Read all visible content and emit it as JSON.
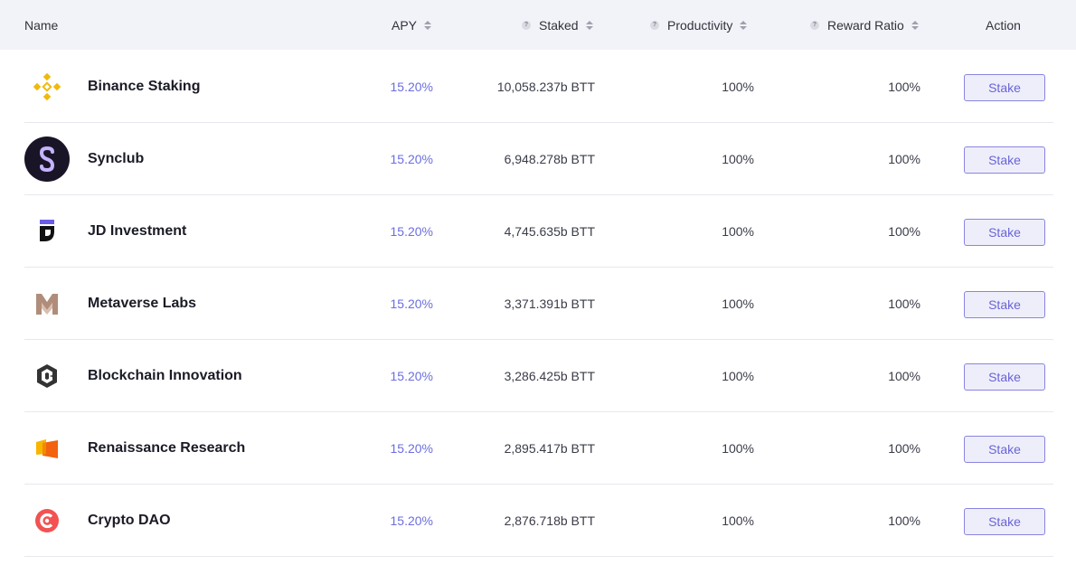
{
  "table": {
    "headers": {
      "name": "Name",
      "apy": "APY",
      "staked": "Staked",
      "productivity": "Productivity",
      "reward_ratio": "Reward Ratio",
      "action": "Action"
    },
    "rows": [
      {
        "name": "Binance Staking",
        "apy": "15.20%",
        "staked": "10,058.237b BTT",
        "productivity": "100%",
        "reward_ratio": "100%",
        "action": "Stake",
        "icon": "binance-icon"
      },
      {
        "name": "Synclub",
        "apy": "15.20%",
        "staked": "6,948.278b BTT",
        "productivity": "100%",
        "reward_ratio": "100%",
        "action": "Stake",
        "icon": "synclub-icon"
      },
      {
        "name": "JD Investment",
        "apy": "15.20%",
        "staked": "4,745.635b BTT",
        "productivity": "100%",
        "reward_ratio": "100%",
        "action": "Stake",
        "icon": "jd-investment-icon"
      },
      {
        "name": "Metaverse Labs",
        "apy": "15.20%",
        "staked": "3,371.391b BTT",
        "productivity": "100%",
        "reward_ratio": "100%",
        "action": "Stake",
        "icon": "metaverse-labs-icon"
      },
      {
        "name": "Blockchain Innovation",
        "apy": "15.20%",
        "staked": "3,286.425b BTT",
        "productivity": "100%",
        "reward_ratio": "100%",
        "action": "Stake",
        "icon": "blockchain-innovation-icon"
      },
      {
        "name": "Renaissance Research",
        "apy": "15.20%",
        "staked": "2,895.417b BTT",
        "productivity": "100%",
        "reward_ratio": "100%",
        "action": "Stake",
        "icon": "renaissance-research-icon"
      },
      {
        "name": "Crypto DAO",
        "apy": "15.20%",
        "staked": "2,876.718b BTT",
        "productivity": "100%",
        "reward_ratio": "100%",
        "action": "Stake",
        "icon": "crypto-dao-icon"
      }
    ]
  },
  "colors": {
    "header_bg": "#f2f3f8",
    "apy_accent": "#6b6ee0",
    "button_border": "#8a84e0",
    "button_bg": "#eeeefb"
  }
}
